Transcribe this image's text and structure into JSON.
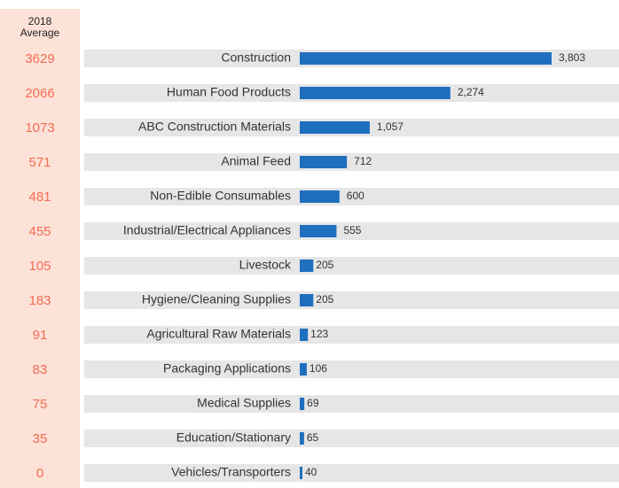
{
  "chart_data": {
    "type": "bar",
    "orientation": "horizontal",
    "average_header": "2018 Average",
    "averages": [
      3629,
      2066,
      1073,
      571,
      481,
      455,
      105,
      183,
      91,
      83,
      75,
      35,
      0
    ],
    "categories": [
      "Construction",
      "Human Food Products",
      "ABC Construction Materials",
      "Animal Feed",
      "Non-Edible Consumables",
      "Industrial/Electrical Appliances",
      "Livestock",
      "Hygiene/Cleaning Supplies",
      "Agricultural Raw Materials",
      "Packaging Applications",
      "Medical Supplies",
      "Education/Stationary",
      "Vehicles/Transporters"
    ],
    "values": [
      3803,
      2274,
      1057,
      712,
      600,
      555,
      205,
      205,
      123,
      106,
      69,
      65,
      40
    ],
    "value_labels": [
      "3,803",
      "2,274",
      "1,057",
      "712",
      "600",
      "555",
      "205",
      "205",
      "123",
      "106",
      "69",
      "65",
      "40"
    ],
    "color": "#1f6fbf",
    "average_color": "#f26c52"
  }
}
